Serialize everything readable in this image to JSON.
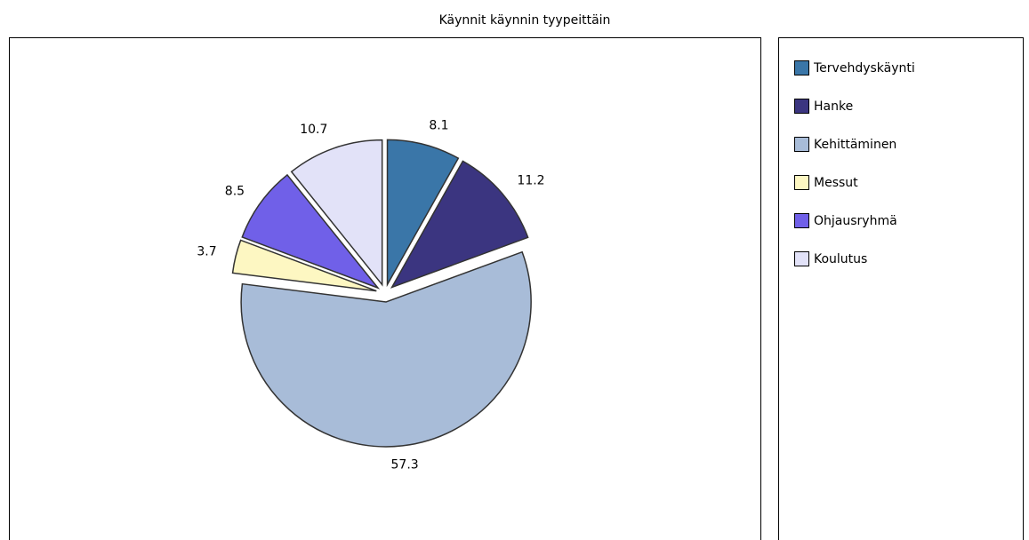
{
  "chart_data": {
    "type": "pie",
    "title": "Käynnit käynnin tyypeittäin",
    "categories": [
      "Tervehdyskäynti",
      "Hanke",
      "Kehittäminen",
      "Messut",
      "Ohjausryhmä",
      "Koulutus"
    ],
    "values": [
      8.1,
      11.2,
      57.3,
      3.7,
      8.5,
      10.7
    ],
    "colors": [
      "#3a76a8",
      "#3b3580",
      "#a8bcd8",
      "#fdf7c2",
      "#7060e8",
      "#e2e2f8"
    ],
    "legend": "right"
  }
}
